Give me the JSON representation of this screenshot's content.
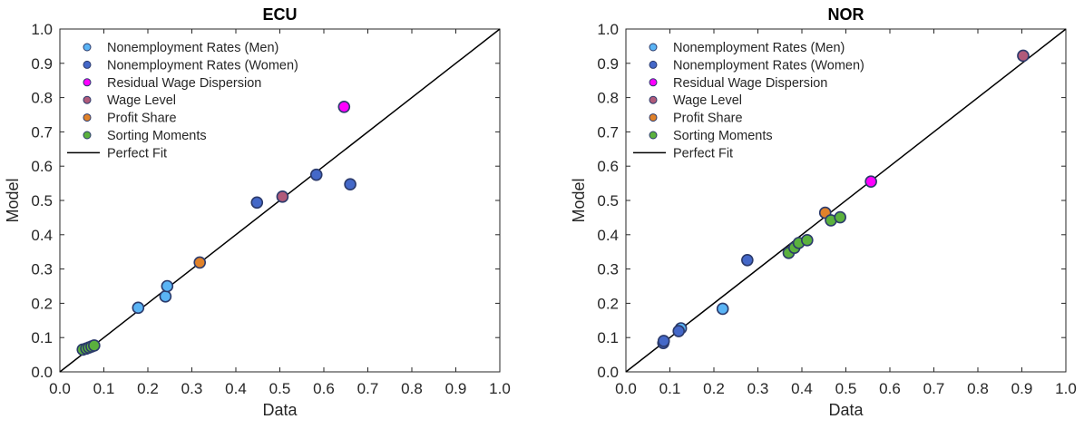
{
  "chart_data": [
    {
      "type": "scatter",
      "title": "ECU",
      "xlabel": "Data",
      "ylabel": "Model",
      "xlim": [
        0,
        1
      ],
      "ylim": [
        0,
        1
      ],
      "xticks": [
        "0.0",
        "0.1",
        "0.2",
        "0.3",
        "0.4",
        "0.5",
        "0.6",
        "0.7",
        "0.8",
        "0.9",
        "1.0"
      ],
      "yticks": [
        "0.0",
        "0.1",
        "0.2",
        "0.3",
        "0.4",
        "0.5",
        "0.6",
        "0.7",
        "0.8",
        "0.9",
        "1.0"
      ],
      "grid": false,
      "legend_position": "top-left",
      "series": [
        {
          "name": "Nonemployment Rates (Men)",
          "color": "#5ab4f5",
          "points": [
            [
              0.178,
              0.187
            ],
            [
              0.24,
              0.22
            ],
            [
              0.244,
              0.25
            ]
          ]
        },
        {
          "name": "Nonemployment Rates (Women)",
          "color": "#4468c8",
          "points": [
            [
              0.448,
              0.494
            ],
            [
              0.583,
              0.575
            ],
            [
              0.66,
              0.547
            ]
          ]
        },
        {
          "name": "Residual Wage Dispersion",
          "color": "#ff00ff",
          "points": [
            [
              0.646,
              0.773
            ]
          ]
        },
        {
          "name": "Wage Level",
          "color": "#b05a7a",
          "points": [
            [
              0.506,
              0.511
            ]
          ]
        },
        {
          "name": "Profit Share",
          "color": "#e0822a",
          "points": [
            [
              0.318,
              0.319
            ]
          ]
        },
        {
          "name": "Sorting Moments",
          "color": "#5bb13e",
          "points": [
            [
              0.052,
              0.065
            ],
            [
              0.06,
              0.068
            ],
            [
              0.066,
              0.071
            ],
            [
              0.072,
              0.074
            ],
            [
              0.078,
              0.077
            ]
          ]
        },
        {
          "name": "Perfect Fit",
          "color": "#000000",
          "line": [
            [
              0,
              0
            ],
            [
              1,
              1
            ]
          ]
        }
      ]
    },
    {
      "type": "scatter",
      "title": "NOR",
      "xlabel": "Data",
      "ylabel": "Model",
      "xlim": [
        0,
        1
      ],
      "ylim": [
        0,
        1
      ],
      "xticks": [
        "0.0",
        "0.1",
        "0.2",
        "0.3",
        "0.4",
        "0.5",
        "0.6",
        "0.7",
        "0.8",
        "0.9",
        "1.0"
      ],
      "yticks": [
        "0.0",
        "0.1",
        "0.2",
        "0.3",
        "0.4",
        "0.5",
        "0.6",
        "0.7",
        "0.8",
        "0.9",
        "1.0"
      ],
      "grid": false,
      "legend_position": "top-left",
      "series": [
        {
          "name": "Nonemployment Rates (Men)",
          "color": "#5ab4f5",
          "points": [
            [
              0.125,
              0.127
            ],
            [
              0.22,
              0.184
            ]
          ]
        },
        {
          "name": "Nonemployment Rates (Women)",
          "color": "#4468c8",
          "points": [
            [
              0.085,
              0.084
            ],
            [
              0.086,
              0.09
            ],
            [
              0.12,
              0.119
            ],
            [
              0.276,
              0.326
            ]
          ]
        },
        {
          "name": "Residual Wage Dispersion",
          "color": "#ff00ff",
          "points": [
            [
              0.557,
              0.555
            ]
          ]
        },
        {
          "name": "Wage Level",
          "color": "#b05a7a",
          "points": [
            [
              0.903,
              0.922
            ]
          ]
        },
        {
          "name": "Profit Share",
          "color": "#e0822a",
          "points": [
            [
              0.453,
              0.464
            ]
          ]
        },
        {
          "name": "Sorting Moments",
          "color": "#5bb13e",
          "points": [
            [
              0.37,
              0.347
            ],
            [
              0.383,
              0.362
            ],
            [
              0.393,
              0.376
            ],
            [
              0.412,
              0.384
            ],
            [
              0.466,
              0.442
            ],
            [
              0.487,
              0.451
            ]
          ]
        },
        {
          "name": "Perfect Fit",
          "color": "#000000",
          "line": [
            [
              0,
              0
            ],
            [
              1,
              1
            ]
          ]
        }
      ]
    }
  ]
}
